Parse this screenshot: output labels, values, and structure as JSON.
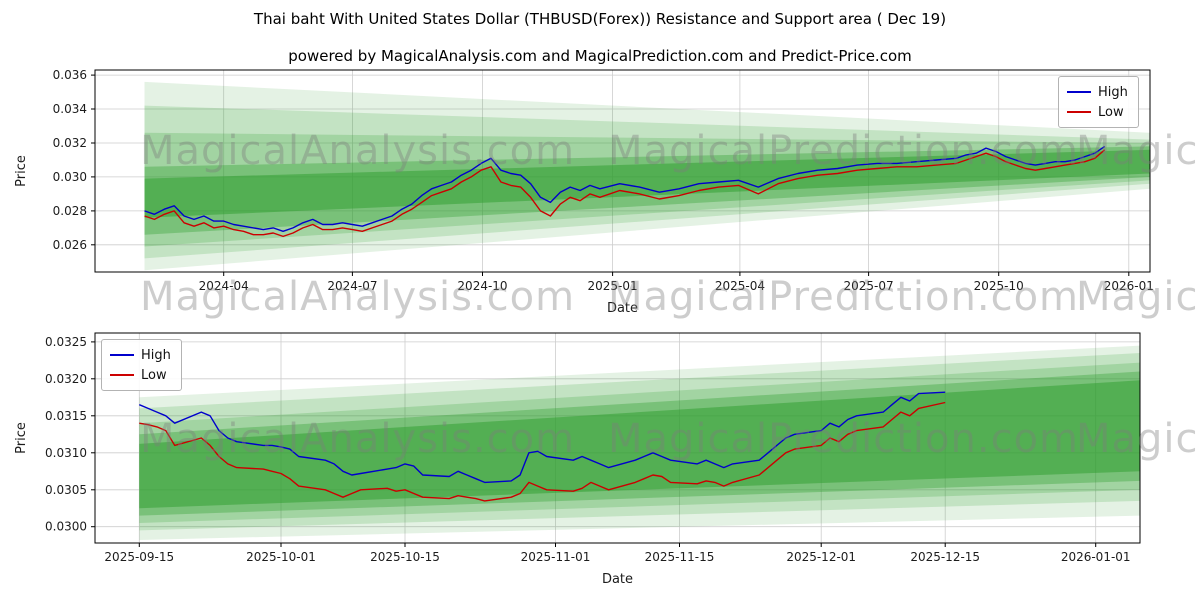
{
  "title": "Thai baht With United States Dollar (THBUSD(Forex)) Resistance and Support area ( Dec 19)",
  "subtitle": "powered by MagicalAnalysis.com and MagicalPrediction.com and Predict-Price.com",
  "watermarks": {
    "analysis": "MagicalAnalysis.com",
    "prediction": "MagicalPrediction.com"
  },
  "colors": {
    "high_line": "#0000cc",
    "low_line": "#cc0000",
    "support_band": "#2e9e2e",
    "grid": "#cdcdcd"
  },
  "chart_data": [
    {
      "type": "line",
      "name": "thbusd-history-chart",
      "xlabel": "Date",
      "ylabel": "Price",
      "grid": true,
      "legend_position": "upper right",
      "band_color": "#2e9e2e",
      "x_domain": [
        "2024-01-01",
        "2026-01-16"
      ],
      "y_domain": [
        0.0244,
        0.0363
      ],
      "x_ticks": [
        {
          "pos": "2024-04-01",
          "label": "2024-04"
        },
        {
          "pos": "2024-07-01",
          "label": "2024-07"
        },
        {
          "pos": "2024-10-01",
          "label": "2024-10"
        },
        {
          "pos": "2025-01-01",
          "label": "2025-01"
        },
        {
          "pos": "2025-04-01",
          "label": "2025-04"
        },
        {
          "pos": "2025-07-01",
          "label": "2025-07"
        },
        {
          "pos": "2025-10-01",
          "label": "2025-10"
        },
        {
          "pos": "2026-01-01",
          "label": "2026-01"
        }
      ],
      "y_ticks": [
        {
          "pos": 0.026,
          "label": "0.026"
        },
        {
          "pos": 0.028,
          "label": "0.028"
        },
        {
          "pos": 0.03,
          "label": "0.030"
        },
        {
          "pos": 0.032,
          "label": "0.032"
        },
        {
          "pos": 0.034,
          "label": "0.034"
        },
        {
          "pos": 0.036,
          "label": "0.036"
        }
      ],
      "bands": [
        {
          "x0": "2024-02-05",
          "x1": "2026-01-16",
          "top0": 0.0356,
          "bot0": 0.0245,
          "top1": 0.0326,
          "bot1": 0.0293,
          "opacity": 0.13
        },
        {
          "x0": "2024-02-05",
          "x1": "2026-01-16",
          "top0": 0.0342,
          "bot0": 0.0252,
          "top1": 0.0322,
          "bot1": 0.0296,
          "opacity": 0.18
        },
        {
          "x0": "2024-02-05",
          "x1": "2026-01-16",
          "top0": 0.0326,
          "bot0": 0.0259,
          "top1": 0.032,
          "bot1": 0.0298,
          "opacity": 0.22
        },
        {
          "x0": "2024-02-05",
          "x1": "2026-01-16",
          "top0": 0.0306,
          "bot0": 0.0266,
          "top1": 0.0318,
          "bot1": 0.03,
          "opacity": 0.35
        },
        {
          "x0": "2024-02-05",
          "x1": "2026-01-16",
          "top0": 0.0299,
          "bot0": 0.0276,
          "top1": 0.0316,
          "bot1": 0.0302,
          "opacity": 0.5
        }
      ],
      "x": [
        "2024-02-05",
        "2024-02-12",
        "2024-02-19",
        "2024-02-26",
        "2024-03-04",
        "2024-03-11",
        "2024-03-18",
        "2024-03-25",
        "2024-04-01",
        "2024-04-08",
        "2024-04-15",
        "2024-04-22",
        "2024-04-29",
        "2024-05-06",
        "2024-05-13",
        "2024-05-20",
        "2024-05-27",
        "2024-06-03",
        "2024-06-10",
        "2024-06-17",
        "2024-06-24",
        "2024-07-01",
        "2024-07-08",
        "2024-07-15",
        "2024-07-22",
        "2024-07-29",
        "2024-08-05",
        "2024-08-12",
        "2024-08-19",
        "2024-08-26",
        "2024-09-02",
        "2024-09-09",
        "2024-09-16",
        "2024-09-23",
        "2024-09-30",
        "2024-10-07",
        "2024-10-14",
        "2024-10-21",
        "2024-10-28",
        "2024-11-04",
        "2024-11-11",
        "2024-11-18",
        "2024-11-25",
        "2024-12-02",
        "2024-12-09",
        "2024-12-16",
        "2024-12-23",
        "2025-01-06",
        "2025-01-20",
        "2025-02-03",
        "2025-02-17",
        "2025-03-03",
        "2025-03-17",
        "2025-03-31",
        "2025-04-14",
        "2025-04-28",
        "2025-05-12",
        "2025-05-26",
        "2025-06-09",
        "2025-06-23",
        "2025-07-07",
        "2025-07-21",
        "2025-08-04",
        "2025-08-18",
        "2025-09-01",
        "2025-09-08",
        "2025-09-15",
        "2025-09-22",
        "2025-09-29",
        "2025-10-06",
        "2025-10-13",
        "2025-10-20",
        "2025-10-27",
        "2025-11-03",
        "2025-11-10",
        "2025-11-17",
        "2025-11-24",
        "2025-12-01",
        "2025-12-08",
        "2025-12-15"
      ],
      "series": [
        {
          "name": "High",
          "color": "#0000cc",
          "values": [
            0.028,
            0.0278,
            0.0281,
            0.0283,
            0.0277,
            0.0275,
            0.0277,
            0.0274,
            0.0274,
            0.0272,
            0.0271,
            0.027,
            0.0269,
            0.027,
            0.0268,
            0.027,
            0.0273,
            0.0275,
            0.0272,
            0.0272,
            0.0273,
            0.0272,
            0.0271,
            0.0273,
            0.0275,
            0.0277,
            0.0281,
            0.0284,
            0.0289,
            0.0293,
            0.0295,
            0.0297,
            0.0301,
            0.0304,
            0.0308,
            0.0311,
            0.0304,
            0.0302,
            0.0301,
            0.0296,
            0.0288,
            0.0285,
            0.0291,
            0.0294,
            0.0292,
            0.0295,
            0.0293,
            0.0296,
            0.0294,
            0.0291,
            0.0293,
            0.0296,
            0.0297,
            0.0298,
            0.0294,
            0.0299,
            0.0302,
            0.0304,
            0.0305,
            0.0307,
            0.0308,
            0.0308,
            0.0309,
            0.031,
            0.0311,
            0.0313,
            0.0314,
            0.0317,
            0.0315,
            0.0312,
            0.031,
            0.0308,
            0.0307,
            0.0308,
            0.0309,
            0.0309,
            0.031,
            0.0312,
            0.0314,
            0.0318
          ]
        },
        {
          "name": "Low",
          "color": "#cc0000",
          "values": [
            0.0277,
            0.0275,
            0.0278,
            0.028,
            0.0273,
            0.0271,
            0.0273,
            0.027,
            0.0271,
            0.0269,
            0.0268,
            0.0266,
            0.0266,
            0.0267,
            0.0265,
            0.0267,
            0.027,
            0.0272,
            0.0269,
            0.0269,
            0.027,
            0.0269,
            0.0268,
            0.027,
            0.0272,
            0.0274,
            0.0278,
            0.0281,
            0.0285,
            0.0289,
            0.0291,
            0.0293,
            0.0297,
            0.03,
            0.0304,
            0.0306,
            0.0297,
            0.0295,
            0.0294,
            0.0288,
            0.028,
            0.0277,
            0.0284,
            0.0288,
            0.0286,
            0.029,
            0.0288,
            0.0292,
            0.029,
            0.0287,
            0.0289,
            0.0292,
            0.0294,
            0.0295,
            0.029,
            0.0296,
            0.0299,
            0.0301,
            0.0302,
            0.0304,
            0.0305,
            0.0306,
            0.0306,
            0.0307,
            0.0308,
            0.031,
            0.0312,
            0.0314,
            0.0312,
            0.0309,
            0.0307,
            0.0305,
            0.0304,
            0.0305,
            0.0306,
            0.0307,
            0.0308,
            0.0309,
            0.0311,
            0.0316
          ]
        }
      ]
    },
    {
      "type": "line",
      "name": "thbusd-recent-chart",
      "xlabel": "Date",
      "ylabel": "Price",
      "grid": true,
      "legend_position": "upper left",
      "band_color": "#2e9e2e",
      "x_domain": [
        "2025-09-10",
        "2026-01-06"
      ],
      "y_domain": [
        0.02978,
        0.03262
      ],
      "x_ticks": [
        {
          "pos": "2025-09-15",
          "label": "2025-09-15"
        },
        {
          "pos": "2025-10-01",
          "label": "2025-10-01"
        },
        {
          "pos": "2025-10-15",
          "label": "2025-10-15"
        },
        {
          "pos": "2025-11-01",
          "label": "2025-11-01"
        },
        {
          "pos": "2025-11-15",
          "label": "2025-11-15"
        },
        {
          "pos": "2025-12-01",
          "label": "2025-12-01"
        },
        {
          "pos": "2025-12-15",
          "label": "2025-12-15"
        },
        {
          "pos": "2026-01-01",
          "label": "2026-01-01"
        }
      ],
      "y_ticks": [
        {
          "pos": 0.03,
          "label": "0.0300"
        },
        {
          "pos": 0.0305,
          "label": "0.0305"
        },
        {
          "pos": 0.031,
          "label": "0.0310"
        },
        {
          "pos": 0.0315,
          "label": "0.0315"
        },
        {
          "pos": 0.032,
          "label": "0.0320"
        },
        {
          "pos": 0.0325,
          "label": "0.0325"
        }
      ],
      "bands": [
        {
          "x0": "2025-09-15",
          "x1": "2026-01-06",
          "top0": 0.03175,
          "bot0": 0.02982,
          "top1": 0.03245,
          "bot1": 0.03015,
          "opacity": 0.13
        },
        {
          "x0": "2025-09-15",
          "x1": "2026-01-06",
          "top0": 0.0316,
          "bot0": 0.02995,
          "top1": 0.03235,
          "bot1": 0.03035,
          "opacity": 0.18
        },
        {
          "x0": "2025-09-15",
          "x1": "2026-01-06",
          "top0": 0.0314,
          "bot0": 0.03005,
          "top1": 0.03222,
          "bot1": 0.0305,
          "opacity": 0.22
        },
        {
          "x0": "2025-09-15",
          "x1": "2026-01-06",
          "top0": 0.03125,
          "bot0": 0.03015,
          "top1": 0.0321,
          "bot1": 0.03062,
          "opacity": 0.35
        },
        {
          "x0": "2025-09-15",
          "x1": "2026-01-06",
          "top0": 0.03112,
          "bot0": 0.03025,
          "top1": 0.03198,
          "bot1": 0.03075,
          "opacity": 0.5
        }
      ],
      "x": [
        "2025-09-15",
        "2025-09-16",
        "2025-09-17",
        "2025-09-18",
        "2025-09-19",
        "2025-09-22",
        "2025-09-23",
        "2025-09-24",
        "2025-09-25",
        "2025-09-26",
        "2025-09-29",
        "2025-09-30",
        "2025-10-01",
        "2025-10-02",
        "2025-10-03",
        "2025-10-06",
        "2025-10-07",
        "2025-10-08",
        "2025-10-09",
        "2025-10-10",
        "2025-10-13",
        "2025-10-14",
        "2025-10-15",
        "2025-10-16",
        "2025-10-17",
        "2025-10-20",
        "2025-10-21",
        "2025-10-22",
        "2025-10-23",
        "2025-10-24",
        "2025-10-27",
        "2025-10-28",
        "2025-10-29",
        "2025-10-30",
        "2025-10-31",
        "2025-11-03",
        "2025-11-04",
        "2025-11-05",
        "2025-11-06",
        "2025-11-07",
        "2025-11-10",
        "2025-11-11",
        "2025-11-12",
        "2025-11-13",
        "2025-11-14",
        "2025-11-17",
        "2025-11-18",
        "2025-11-19",
        "2025-11-20",
        "2025-11-21",
        "2025-11-24",
        "2025-11-25",
        "2025-11-26",
        "2025-11-27",
        "2025-11-28",
        "2025-12-01",
        "2025-12-02",
        "2025-12-03",
        "2025-12-04",
        "2025-12-05",
        "2025-12-08",
        "2025-12-09",
        "2025-12-10",
        "2025-12-11",
        "2025-12-12",
        "2025-12-15"
      ],
      "series": [
        {
          "name": "High",
          "color": "#0000cc",
          "values": [
            0.03165,
            0.0316,
            0.03155,
            0.0315,
            0.0314,
            0.03155,
            0.0315,
            0.0313,
            0.0312,
            0.03115,
            0.0311,
            0.0311,
            0.03108,
            0.03105,
            0.03095,
            0.0309,
            0.03085,
            0.03075,
            0.0307,
            0.03072,
            0.03078,
            0.0308,
            0.03085,
            0.03082,
            0.0307,
            0.03068,
            0.03075,
            0.0307,
            0.03065,
            0.0306,
            0.03062,
            0.0307,
            0.031,
            0.03102,
            0.03095,
            0.0309,
            0.03095,
            0.0309,
            0.03085,
            0.0308,
            0.0309,
            0.03095,
            0.031,
            0.03095,
            0.0309,
            0.03085,
            0.0309,
            0.03085,
            0.0308,
            0.03085,
            0.0309,
            0.031,
            0.0311,
            0.0312,
            0.03125,
            0.0313,
            0.0314,
            0.03135,
            0.03145,
            0.0315,
            0.03155,
            0.03165,
            0.03175,
            0.0317,
            0.0318,
            0.03182
          ]
        },
        {
          "name": "Low",
          "color": "#cc0000",
          "values": [
            0.0314,
            0.03138,
            0.03135,
            0.0313,
            0.0311,
            0.0312,
            0.0311,
            0.03095,
            0.03085,
            0.0308,
            0.03078,
            0.03075,
            0.03072,
            0.03065,
            0.03055,
            0.0305,
            0.03045,
            0.0304,
            0.03045,
            0.0305,
            0.03052,
            0.03048,
            0.0305,
            0.03045,
            0.0304,
            0.03038,
            0.03042,
            0.0304,
            0.03038,
            0.03035,
            0.0304,
            0.03045,
            0.0306,
            0.03055,
            0.0305,
            0.03048,
            0.03052,
            0.0306,
            0.03055,
            0.0305,
            0.0306,
            0.03065,
            0.0307,
            0.03068,
            0.0306,
            0.03058,
            0.03062,
            0.0306,
            0.03055,
            0.0306,
            0.0307,
            0.0308,
            0.0309,
            0.031,
            0.03105,
            0.0311,
            0.0312,
            0.03115,
            0.03125,
            0.0313,
            0.03135,
            0.03145,
            0.03155,
            0.0315,
            0.0316,
            0.03168
          ]
        }
      ]
    }
  ]
}
